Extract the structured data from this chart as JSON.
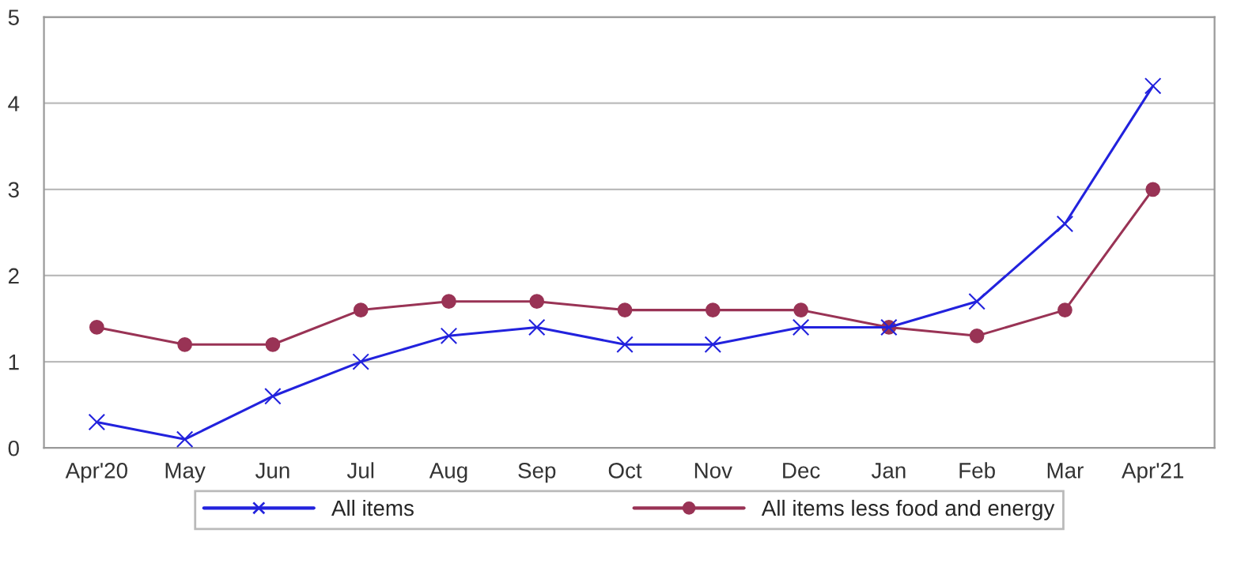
{
  "chart_data": {
    "type": "line",
    "categories": [
      "Apr'20",
      "May",
      "Jun",
      "Jul",
      "Aug",
      "Sep",
      "Oct",
      "Nov",
      "Dec",
      "Jan",
      "Feb",
      "Mar",
      "Apr'21"
    ],
    "series": [
      {
        "name": "All items",
        "color": "#2222dd",
        "marker": "cross",
        "values": [
          0.3,
          0.1,
          0.6,
          1.0,
          1.3,
          1.4,
          1.2,
          1.2,
          1.4,
          1.4,
          1.7,
          2.6,
          4.2
        ]
      },
      {
        "name": "All items less food and energy",
        "color": "#993355",
        "marker": "circle",
        "values": [
          1.4,
          1.2,
          1.2,
          1.6,
          1.7,
          1.7,
          1.6,
          1.6,
          1.6,
          1.4,
          1.3,
          1.6,
          3.0
        ]
      }
    ],
    "ylim": [
      0,
      5
    ],
    "yticks": [
      0,
      1,
      2,
      3,
      4,
      5
    ],
    "grid": "y",
    "legend": "bottom",
    "line_style": "solid"
  }
}
